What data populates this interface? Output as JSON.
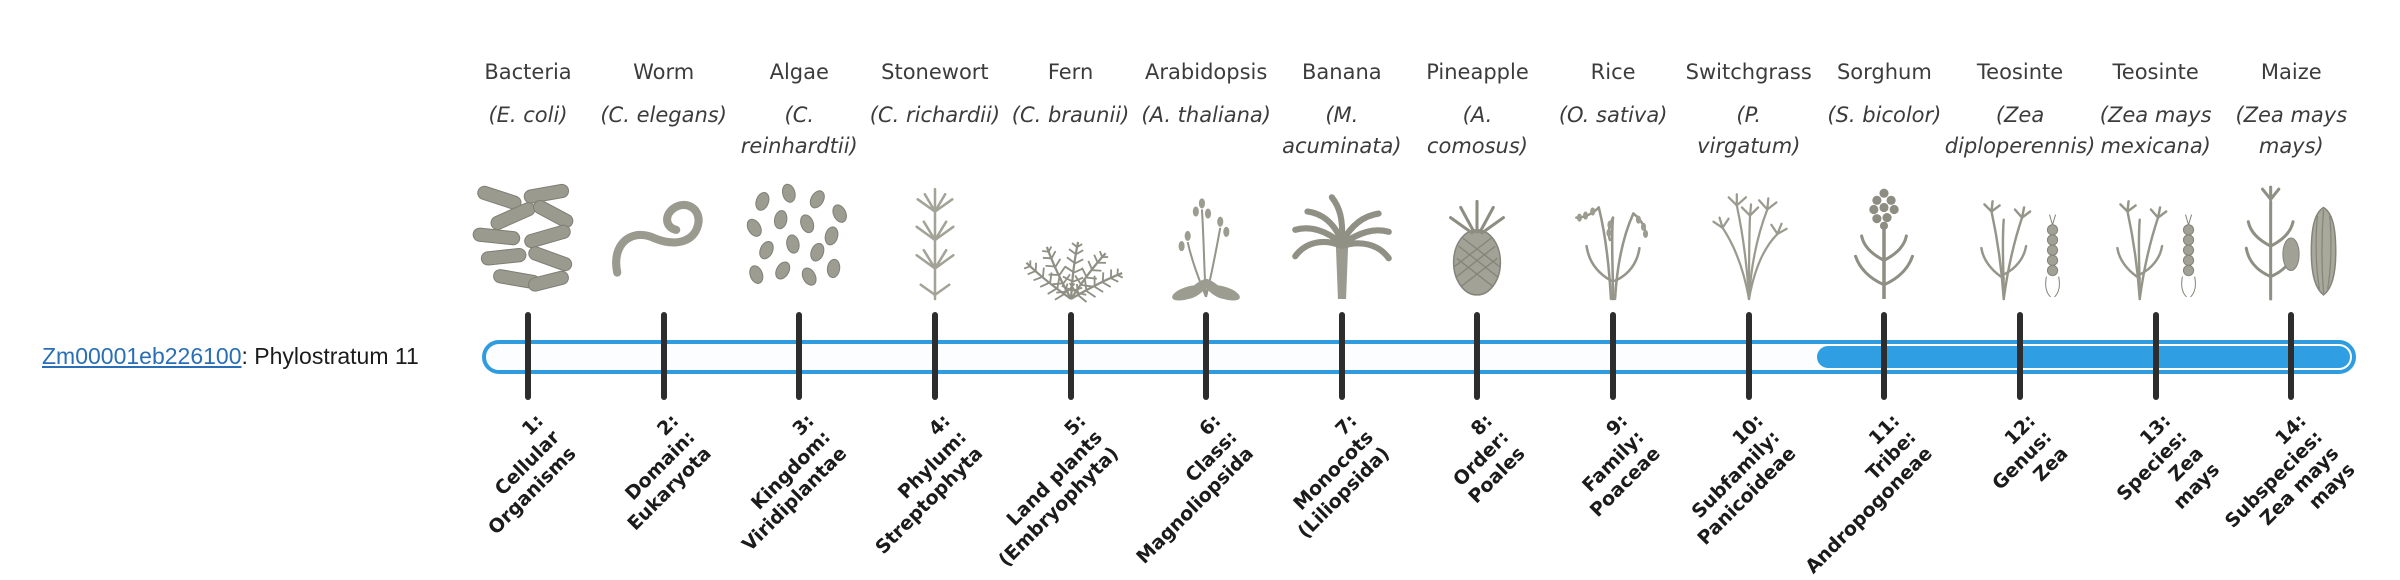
{
  "figure": {
    "gene_id": "Zm00001eb226100",
    "gene_suffix": ": Phylostratum 11"
  },
  "colors": {
    "bar_outline": "#2f9ce0",
    "bar_fill": "#309ee2",
    "bar_background": "#fbfdfe",
    "tick": "#2d2d2d",
    "link": "#2a6fb5",
    "illustration": "#9a9a8e"
  },
  "fill_start_stratum": 11,
  "strata": [
    {
      "index": 1,
      "common": "Bacteria",
      "sci_lines": [
        "(E. coli)"
      ],
      "icon": "bacteria",
      "label_lines": [
        "1:",
        "Cellular",
        "Organisms"
      ]
    },
    {
      "index": 2,
      "common": "Worm",
      "sci_lines": [
        "(C. elegans)"
      ],
      "icon": "worm",
      "label_lines": [
        "2:",
        "Domain:",
        "Eukaryota"
      ]
    },
    {
      "index": 3,
      "common": "Algae",
      "sci_lines": [
        "(C.",
        "reinhardtii)"
      ],
      "icon": "algae",
      "label_lines": [
        "3:",
        "Kingdom:",
        "Viridiplantae"
      ]
    },
    {
      "index": 4,
      "common": "Stonewort",
      "sci_lines": [
        "(C. richardii)"
      ],
      "icon": "stonewort",
      "label_lines": [
        "4:",
        "Phylum:",
        "Streptophyta"
      ]
    },
    {
      "index": 5,
      "common": "Fern",
      "sci_lines": [
        "(C. braunii)"
      ],
      "icon": "fern",
      "label_lines": [
        "5:",
        "Land plants",
        "(Embryophyta)"
      ]
    },
    {
      "index": 6,
      "common": "Arabidopsis",
      "sci_lines": [
        "(A. thaliana)"
      ],
      "icon": "arabidopsis",
      "label_lines": [
        "6:",
        "Class:",
        "Magnoliopsida"
      ]
    },
    {
      "index": 7,
      "common": "Banana",
      "sci_lines": [
        "(M.",
        "acuminata)"
      ],
      "icon": "banana",
      "label_lines": [
        "7:",
        "Monocots",
        "(Liliopsida)"
      ]
    },
    {
      "index": 8,
      "common": "Pineapple",
      "sci_lines": [
        "(A.",
        "comosus)"
      ],
      "icon": "pineapple",
      "label_lines": [
        "8:",
        "Order:",
        "Poales"
      ]
    },
    {
      "index": 9,
      "common": "Rice",
      "sci_lines": [
        "(O. sativa)"
      ],
      "icon": "rice",
      "label_lines": [
        "9:",
        "Family:",
        "Poaceae"
      ]
    },
    {
      "index": 10,
      "common": "Switchgrass",
      "sci_lines": [
        "(P.",
        "virgatum)"
      ],
      "icon": "switchgrass",
      "label_lines": [
        "10:",
        "Subfamily:",
        "Panicoideae"
      ]
    },
    {
      "index": 11,
      "common": "Sorghum",
      "sci_lines": [
        "(S. bicolor)"
      ],
      "icon": "sorghum",
      "label_lines": [
        "11:",
        "Tribe:",
        "Andropogoneae"
      ]
    },
    {
      "index": 12,
      "common": "Teosinte",
      "sci_lines": [
        "(Zea",
        "diploperennis)"
      ],
      "icon": "teosinte",
      "label_lines": [
        "12:",
        "Genus:",
        "Zea"
      ]
    },
    {
      "index": 13,
      "common": "Teosinte",
      "sci_lines": [
        "(Zea mays",
        "mexicana)"
      ],
      "icon": "teosinte",
      "label_lines": [
        "13:",
        "Species:",
        "Zea",
        "mays"
      ]
    },
    {
      "index": 14,
      "common": "Maize",
      "sci_lines": [
        "(Zea mays",
        "mays)"
      ],
      "icon": "maize",
      "label_lines": [
        "14:",
        "Subspecies:",
        "Zea mays",
        "mays"
      ]
    }
  ]
}
